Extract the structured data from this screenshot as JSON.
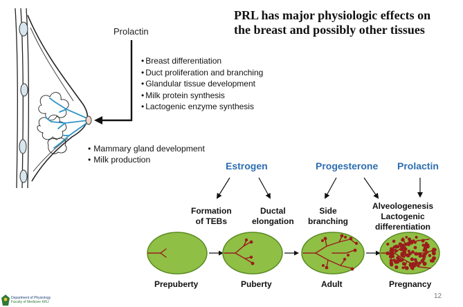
{
  "title": {
    "line1": "PRL has major physiologic effects on",
    "line2": "the breast and possibly other tissues"
  },
  "prolactin_label": "Prolactin",
  "prolactin_effects": [
    "Breast differentiation",
    "Duct proliferation and branching",
    "Glandular tissue development",
    "Milk protein synthesis",
    "Lactogenic enzyme synthesis"
  ],
  "breast_functions": [
    "Mammary gland development",
    "Milk production"
  ],
  "hormones": {
    "estrogen": "Estrogen",
    "progesterone": "Progesterone",
    "prolactin": "Prolactin"
  },
  "effects": {
    "formation_line1": "Formation",
    "formation_line2": "of TEBs",
    "ductal_line1": "Ductal",
    "ductal_line2": "elongation",
    "side_line1": "Side",
    "side_line2": "branching",
    "alveolo_line1": "Alveologenesis",
    "alveolo_line2": "Lactogenic",
    "alveolo_line3": "differentiation"
  },
  "stages": [
    "Prepuberty",
    "Puberty",
    "Adult",
    "Pregnancy"
  ],
  "page_number": "12",
  "footer": {
    "line1": "Department of Physiology",
    "line2": "Faculty of Medicine KKU"
  },
  "colors": {
    "gland_fill": "#8fbf45",
    "gland_stroke": "#5a8a22",
    "duct_color": "#9b1c1c",
    "hormone_blue": "#2c6db0",
    "milk_duct_blue": "#2e95c6"
  }
}
